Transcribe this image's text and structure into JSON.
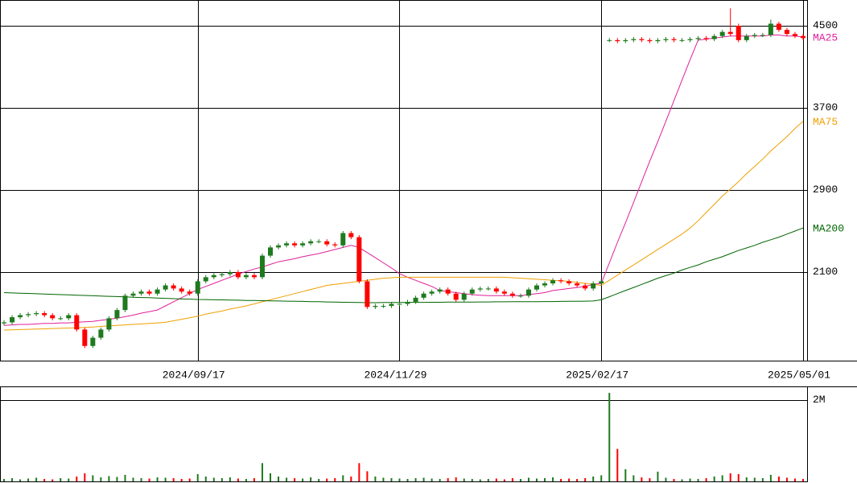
{
  "chart_data": [
    {
      "type": "candlestick",
      "categories": [
        null,
        null,
        null,
        null,
        null,
        null,
        null,
        null,
        null,
        null,
        null,
        null,
        null,
        null,
        null,
        null,
        null,
        null,
        null,
        null,
        null,
        null,
        null,
        null,
        "2024/09/17",
        null,
        null,
        null,
        null,
        null,
        null,
        null,
        null,
        null,
        null,
        null,
        null,
        null,
        null,
        null,
        null,
        null,
        null,
        null,
        null,
        null,
        null,
        null,
        null,
        "2024/11/29",
        null,
        null,
        null,
        null,
        null,
        null,
        null,
        null,
        null,
        null,
        null,
        null,
        null,
        null,
        null,
        null,
        null,
        null,
        null,
        null,
        null,
        null,
        null,
        null,
        "2025/02/17",
        null,
        null,
        null,
        null,
        null,
        null,
        null,
        null,
        null,
        null,
        null,
        null,
        null,
        null,
        null,
        null,
        null,
        null,
        null,
        null,
        null,
        null,
        null,
        null,
        "2025/05/01"
      ],
      "open": [
        1600,
        1610,
        1660,
        1680,
        1690,
        1700,
        1680,
        1650,
        1650,
        1680,
        1540,
        1380,
        1460,
        1540,
        1650,
        1730,
        1870,
        1890,
        1910,
        1890,
        1930,
        1970,
        1940,
        1910,
        1890,
        2010,
        2050,
        2070,
        2080,
        2100,
        2050,
        2070,
        2050,
        2260,
        2340,
        2360,
        2380,
        2360,
        2380,
        2400,
        2400,
        2370,
        2360,
        2480,
        2440,
        2010,
        1760,
        1770,
        1770,
        1790,
        1790,
        1810,
        1850,
        1890,
        1910,
        1930,
        1890,
        1830,
        1890,
        1930,
        1940,
        1940,
        1910,
        1890,
        1870,
        1870,
        1930,
        1970,
        1990,
        2020,
        2010,
        1990,
        1970,
        1940,
        1990,
        4360,
        4360,
        4350,
        4360,
        4370,
        4360,
        4350,
        4360,
        4370,
        4360,
        4360,
        4370,
        4380,
        4370,
        4400,
        4440,
        4500,
        4360,
        4400,
        4410,
        4410,
        4520,
        4460,
        4420,
        4400
      ],
      "high": [
        1630,
        1680,
        1700,
        1710,
        1720,
        1720,
        1700,
        1670,
        1700,
        1700,
        1560,
        1480,
        1560,
        1670,
        1750,
        1890,
        1910,
        1930,
        1930,
        1950,
        1990,
        1990,
        1960,
        1930,
        2030,
        2070,
        2090,
        2100,
        2120,
        2120,
        2090,
        2090,
        2280,
        2360,
        2380,
        2400,
        2400,
        2400,
        2420,
        2420,
        2420,
        2390,
        2500,
        2500,
        2460,
        2030,
        1790,
        1790,
        1810,
        1810,
        1830,
        1870,
        1910,
        1930,
        1950,
        1950,
        1910,
        1910,
        1950,
        1960,
        1960,
        1960,
        1930,
        1910,
        1890,
        1950,
        1990,
        2010,
        2040,
        2040,
        2030,
        2010,
        1990,
        2010,
        2030,
        4380,
        4380,
        4380,
        4390,
        4390,
        4380,
        4380,
        4390,
        4390,
        4380,
        4390,
        4400,
        4400,
        4420,
        4460,
        4670,
        4520,
        4420,
        4430,
        4430,
        4560,
        4540,
        4480,
        4440,
        4420
      ],
      "low": [
        1580,
        1590,
        1640,
        1660,
        1670,
        1660,
        1630,
        1630,
        1630,
        1520,
        1360,
        1360,
        1440,
        1520,
        1630,
        1710,
        1850,
        1870,
        1870,
        1870,
        1910,
        1920,
        1890,
        1870,
        1870,
        1990,
        2030,
        2050,
        2060,
        2030,
        2030,
        2030,
        2030,
        2240,
        2320,
        2340,
        2340,
        2340,
        2360,
        2380,
        2350,
        2340,
        2340,
        2420,
        1990,
        1740,
        1740,
        1750,
        1750,
        1770,
        1770,
        1790,
        1830,
        1870,
        1890,
        1870,
        1810,
        1810,
        1870,
        1910,
        1920,
        1890,
        1870,
        1850,
        1850,
        1850,
        1910,
        1950,
        1970,
        1990,
        1970,
        1950,
        1920,
        1920,
        1970,
        4340,
        4330,
        4330,
        4340,
        4340,
        4330,
        4330,
        4340,
        4340,
        4340,
        4340,
        4350,
        4350,
        4350,
        4380,
        4400,
        4340,
        4340,
        4380,
        4390,
        4390,
        4440,
        4400,
        4380,
        4360
      ],
      "close": [
        1610,
        1660,
        1680,
        1690,
        1700,
        1680,
        1650,
        1650,
        1680,
        1540,
        1380,
        1460,
        1540,
        1650,
        1730,
        1870,
        1890,
        1910,
        1890,
        1930,
        1970,
        1940,
        1910,
        1890,
        2010,
        2050,
        2070,
        2080,
        2100,
        2050,
        2070,
        2050,
        2260,
        2340,
        2360,
        2380,
        2360,
        2380,
        2400,
        2400,
        2370,
        2360,
        2480,
        2440,
        2010,
        1760,
        1770,
        1770,
        1790,
        1790,
        1810,
        1850,
        1890,
        1910,
        1930,
        1890,
        1830,
        1890,
        1930,
        1940,
        1940,
        1910,
        1890,
        1870,
        1870,
        1930,
        1970,
        1990,
        2020,
        2010,
        1990,
        1970,
        1940,
        1990,
        2010,
        4360,
        4350,
        4360,
        4370,
        4360,
        4350,
        4360,
        4370,
        4360,
        4360,
        4370,
        4380,
        4370,
        4400,
        4440,
        4420,
        4360,
        4400,
        4410,
        4410,
        4520,
        4460,
        4420,
        4400,
        4380
      ],
      "up_color": "#1e7a1e",
      "down_color": "#ff0000",
      "series": [
        {
          "name": "MA25",
          "color": "#e0209a",
          "values": [
            1580,
            1585,
            1590,
            1590,
            1595,
            1600,
            1600,
            1605,
            1605,
            1610,
            1615,
            1620,
            1630,
            1640,
            1650,
            1665,
            1680,
            1700,
            1715,
            1730,
            1770,
            1810,
            1850,
            1890,
            1930,
            1960,
            1990,
            2020,
            2050,
            2080,
            2105,
            2130,
            2150,
            2175,
            2200,
            2215,
            2230,
            2250,
            2265,
            2280,
            2300,
            2320,
            2340,
            2360,
            2340,
            2290,
            2240,
            2190,
            2140,
            2085,
            2050,
            2020,
            1990,
            1960,
            1920,
            1910,
            1900,
            1890,
            1880,
            1875,
            1870,
            1870,
            1870,
            1870,
            1870,
            1880,
            1890,
            1900,
            1920,
            1930,
            1940,
            1950,
            1960,
            1980,
            1990,
            2190,
            2390,
            2580,
            2780,
            2980,
            3180,
            3370,
            3570,
            3770,
            3970,
            4170,
            4360,
            4370,
            4380,
            4390,
            4400,
            4400,
            4400,
            4400,
            4400,
            4410,
            4410,
            4400,
            4400,
            4390
          ]
        },
        {
          "name": "MA75",
          "color": "#f0a000",
          "values": [
            1535,
            1537,
            1540,
            1542,
            1545,
            1547,
            1550,
            1552,
            1555,
            1558,
            1560,
            1565,
            1570,
            1575,
            1580,
            1585,
            1590,
            1595,
            1600,
            1605,
            1610,
            1625,
            1640,
            1655,
            1670,
            1690,
            1705,
            1720,
            1740,
            1755,
            1770,
            1790,
            1810,
            1830,
            1850,
            1870,
            1890,
            1910,
            1930,
            1950,
            1970,
            1980,
            1990,
            2000,
            2010,
            2020,
            2030,
            2040,
            2045,
            2050,
            2050,
            2050,
            2050,
            2050,
            2050,
            2050,
            2050,
            2050,
            2050,
            2050,
            2050,
            2050,
            2050,
            2045,
            2040,
            2035,
            2030,
            2025,
            2020,
            2015,
            2010,
            2000,
            1990,
            1980,
            1970,
            2020,
            2070,
            2120,
            2170,
            2220,
            2270,
            2320,
            2370,
            2420,
            2470,
            2530,
            2600,
            2680,
            2760,
            2840,
            2910,
            2980,
            3060,
            3130,
            3200,
            3280,
            3350,
            3420,
            3500,
            3570
          ]
        },
        {
          "name": "MA200",
          "color": "#006400",
          "values": [
            1900,
            1897,
            1894,
            1892,
            1889,
            1886,
            1883,
            1880,
            1878,
            1875,
            1872,
            1869,
            1866,
            1864,
            1861,
            1858,
            1855,
            1852,
            1850,
            1847,
            1844,
            1841,
            1838,
            1836,
            1833,
            1832,
            1830,
            1829,
            1827,
            1826,
            1824,
            1823,
            1821,
            1820,
            1818,
            1817,
            1815,
            1814,
            1812,
            1811,
            1809,
            1808,
            1806,
            1805,
            1803,
            1802,
            1802,
            1803,
            1803,
            1804,
            1804,
            1805,
            1805,
            1806,
            1806,
            1807,
            1807,
            1808,
            1808,
            1809,
            1809,
            1810,
            1810,
            1811,
            1811,
            1812,
            1812,
            1813,
            1813,
            1814,
            1815,
            1816,
            1817,
            1818,
            1830,
            1860,
            1890,
            1920,
            1950,
            1980,
            2010,
            2040,
            2065,
            2090,
            2120,
            2145,
            2170,
            2200,
            2225,
            2250,
            2280,
            2310,
            2335,
            2360,
            2390,
            2415,
            2440,
            2470,
            2500,
            2530
          ]
        }
      ],
      "ylim": [
        1237,
        4751
      ],
      "yticks": [
        2100,
        2900,
        3700,
        4500
      ],
      "grid": true
    },
    {
      "type": "bar",
      "values": [
        60000,
        80000,
        50000,
        70000,
        90000,
        60000,
        50000,
        80000,
        70000,
        120000,
        200000,
        150000,
        100000,
        130000,
        110000,
        160000,
        90000,
        80000,
        70000,
        100000,
        90000,
        80000,
        60000,
        70000,
        180000,
        120000,
        90000,
        80000,
        100000,
        70000,
        60000,
        80000,
        450000,
        200000,
        120000,
        90000,
        80000,
        70000,
        100000,
        60000,
        70000,
        80000,
        150000,
        120000,
        450000,
        250000,
        120000,
        90000,
        80000,
        70000,
        60000,
        80000,
        90000,
        70000,
        60000,
        80000,
        100000,
        70000,
        60000,
        50000,
        60000,
        70000,
        50000,
        80000,
        60000,
        90000,
        70000,
        80000,
        100000,
        60000,
        70000,
        60000,
        80000,
        120000,
        150000,
        2180000,
        800000,
        300000,
        150000,
        100000,
        80000,
        240000,
        90000,
        60000,
        50000,
        70000,
        60000,
        80000,
        120000,
        150000,
        200000,
        180000,
        100000,
        90000,
        80000,
        160000,
        120000,
        90000,
        70000,
        60000
      ],
      "ylim": [
        0,
        2340000
      ],
      "yticks": [
        {
          "value": 2000000,
          "label": "2M"
        }
      ],
      "grid": true
    }
  ]
}
